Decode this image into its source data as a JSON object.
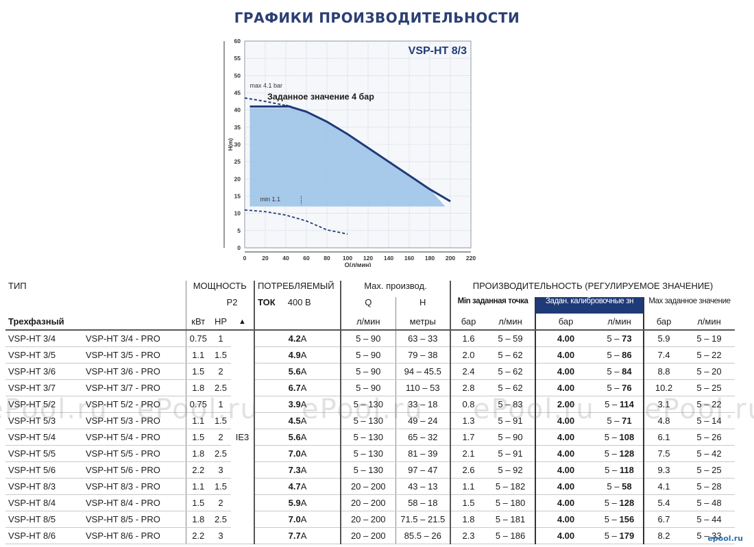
{
  "page": {
    "heading": "ГРАФИКИ ПРОИЗВОДИТЕЛЬНОСТИ"
  },
  "chart_data": {
    "type": "area",
    "title": "VSP-HT 8/3",
    "xlabel": "Q(л/мин)",
    "ylabel": "H(m)",
    "xlim": [
      0,
      220
    ],
    "ylim": [
      0,
      60
    ],
    "x_ticks": [
      0,
      20,
      40,
      60,
      80,
      100,
      120,
      140,
      160,
      180,
      200,
      220
    ],
    "y_ticks": [
      0,
      5,
      10,
      15,
      20,
      25,
      30,
      35,
      40,
      45,
      50,
      55,
      60
    ],
    "grid": true,
    "annotations": {
      "max_label": "max 4.1 bar",
      "setpoint_label": "Заданное значение 4 бар",
      "min_label": "min 1.1"
    },
    "max_curve": {
      "x": [
        0,
        20,
        40,
        60,
        80,
        100,
        120,
        140,
        160,
        180,
        200
      ],
      "y": [
        43.5,
        42.5,
        41.3,
        39.5,
        36.6,
        33.0,
        29.0,
        25.0,
        21.0,
        17.0,
        13.5
      ]
    },
    "setpoint_line": {
      "x": [
        5,
        45
      ],
      "y": [
        41,
        41
      ]
    },
    "min_curve": {
      "x": [
        0,
        20,
        40,
        60,
        80,
        100
      ],
      "y": [
        11,
        10.5,
        9.5,
        7.8,
        5.2,
        4.0
      ]
    },
    "operating_area": {
      "x": [
        5,
        45,
        60,
        80,
        100,
        120,
        140,
        160,
        180,
        195,
        5
      ],
      "y": [
        40.5,
        40.5,
        39.5,
        36.6,
        33.0,
        29.0,
        25.0,
        21.0,
        17.0,
        12.0,
        12.0
      ]
    },
    "colors": {
      "curve": "#1f3a78",
      "area": "#9ec3e8",
      "grid": "#b9c1cc"
    }
  },
  "table": {
    "h1": {
      "type": "ТИП",
      "power": "МОЩНОСТЬ",
      "consumption": "ПОТРЕБЛЯЕМЫЙ",
      "max_perf": "Max. производ.",
      "perf_regulated": "ПРОИЗВОДИТЕЛЬНОСТЬ (РЕГУЛИРУЕМОЕ ЗНАЧЕНИЕ)"
    },
    "h2": {
      "p2": "P2",
      "current": "ТОК",
      "voltage": "400 В",
      "q": "Q",
      "h": "H",
      "min_setpoint": "Min заданная точка",
      "calibrated": "Задан. калибровочные зн",
      "max_setpoint": "Max заданное значение"
    },
    "h3": {
      "phase": "Трехфазный",
      "kw": "кВт",
      "hp": "HP",
      "arrow": "▲",
      "lpm": "л/мин",
      "meters": "метры",
      "bar": "бар"
    },
    "efficiency_class": "IE3",
    "current_unit": "A",
    "rows": [
      {
        "model": "VSP-HT 3/4",
        "pro": "VSP-HT 3/4 - PRO",
        "kw": "0.75",
        "hp": "1",
        "amp": "4.2",
        "q": "5 – 90",
        "h": "63 – 33",
        "min_bar": "1.6",
        "min_lpm": "5 – 59",
        "cal_bar": "4.00",
        "cal_lpm_a": "5 – ",
        "cal_lpm_b": "73",
        "max_bar": "5.9",
        "max_lpm": "5 – 19"
      },
      {
        "model": "VSP-HT 3/5",
        "pro": "VSP-HT 3/5 - PRO",
        "kw": "1.1",
        "hp": "1.5",
        "amp": "4.9",
        "q": "5 – 90",
        "h": "79 – 38",
        "min_bar": "2.0",
        "min_lpm": "5 – 62",
        "cal_bar": "4.00",
        "cal_lpm_a": "5 – ",
        "cal_lpm_b": "86",
        "max_bar": "7.4",
        "max_lpm": "5 – 22"
      },
      {
        "model": "VSP-HT 3/6",
        "pro": "VSP-HT 3/6 - PRO",
        "kw": "1.5",
        "hp": "2",
        "amp": "5.6",
        "q": "5 – 90",
        "h": "94 – 45.5",
        "min_bar": "2.4",
        "min_lpm": "5 – 62",
        "cal_bar": "4.00",
        "cal_lpm_a": "5 – ",
        "cal_lpm_b": "84",
        "max_bar": "8.8",
        "max_lpm": "5 – 20"
      },
      {
        "model": "VSP-HT 3/7",
        "pro": "VSP-HT 3/7 - PRO",
        "kw": "1.8",
        "hp": "2.5",
        "amp": "6.7",
        "q": "5 – 90",
        "h": "110 – 53",
        "min_bar": "2.8",
        "min_lpm": "5 – 62",
        "cal_bar": "4.00",
        "cal_lpm_a": "5 – ",
        "cal_lpm_b": "76",
        "max_bar": "10.2",
        "max_lpm": "5 – 25"
      },
      {
        "model": "VSP-HT 5/2",
        "pro": "VSP-HT 5/2 - PRO",
        "kw": "0.75",
        "hp": "1",
        "amp": "3.9",
        "q": "5 – 130",
        "h": "33 – 18",
        "min_bar": "0.8",
        "min_lpm": "5 – 83",
        "cal_bar": "2.00",
        "cal_lpm_a": "5 – ",
        "cal_lpm_b": "114",
        "max_bar": "3.1",
        "max_lpm": "5 – 22"
      },
      {
        "model": "VSP-HT 5/3",
        "pro": "VSP-HT 5/3 - PRO",
        "kw": "1.1",
        "hp": "1.5",
        "amp": "4.5",
        "q": "5 – 130",
        "h": "49 – 24",
        "min_bar": "1.3",
        "min_lpm": "5 – 91",
        "cal_bar": "4.00",
        "cal_lpm_a": "5 – ",
        "cal_lpm_b": "71",
        "max_bar": "4.8",
        "max_lpm": "5 – 14"
      },
      {
        "model": "VSP-HT 5/4",
        "pro": "VSP-HT 5/4 - PRO",
        "kw": "1.5",
        "hp": "2",
        "amp": "5.6",
        "q": "5 – 130",
        "h": "65 – 32",
        "min_bar": "1.7",
        "min_lpm": "5 – 90",
        "cal_bar": "4.00",
        "cal_lpm_a": "5 – ",
        "cal_lpm_b": "108",
        "max_bar": "6.1",
        "max_lpm": "5 – 26"
      },
      {
        "model": "VSP-HT 5/5",
        "pro": "VSP-HT 5/5 - PRO",
        "kw": "1.8",
        "hp": "2.5",
        "amp": "7.0",
        "q": "5 – 130",
        "h": "81 – 39",
        "min_bar": "2.1",
        "min_lpm": "5 – 91",
        "cal_bar": "4.00",
        "cal_lpm_a": "5 – ",
        "cal_lpm_b": "128",
        "max_bar": "7.5",
        "max_lpm": "5 – 42"
      },
      {
        "model": "VSP-HT 5/6",
        "pro": "VSP-HT 5/6 - PRO",
        "kw": "2.2",
        "hp": "3",
        "amp": "7.3",
        "q": "5 – 130",
        "h": "97 – 47",
        "min_bar": "2.6",
        "min_lpm": "5 – 92",
        "cal_bar": "4.00",
        "cal_lpm_a": "5 – ",
        "cal_lpm_b": "118",
        "max_bar": "9.3",
        "max_lpm": "5 – 25"
      },
      {
        "model": "VSP-HT 8/3",
        "pro": "VSP-HT 8/3 - PRO",
        "kw": "1.1",
        "hp": "1.5",
        "amp": "4.7",
        "q": "20 – 200",
        "h": "43 – 13",
        "min_bar": "1.1",
        "min_lpm": "5 – 182",
        "cal_bar": "4.00",
        "cal_lpm_a": "5 – ",
        "cal_lpm_b": "58",
        "max_bar": "4.1",
        "max_lpm": "5 – 28"
      },
      {
        "model": "VSP-HT 8/4",
        "pro": "VSP-HT 8/4 - PRO",
        "kw": "1.5",
        "hp": "2",
        "amp": "5.9",
        "q": "20 – 200",
        "h": "58 – 18",
        "min_bar": "1.5",
        "min_lpm": "5 – 180",
        "cal_bar": "4.00",
        "cal_lpm_a": "5 – ",
        "cal_lpm_b": "128",
        "max_bar": "5.4",
        "max_lpm": "5 – 48"
      },
      {
        "model": "VSP-HT 8/5",
        "pro": "VSP-HT 8/5 - PRO",
        "kw": "1.8",
        "hp": "2.5",
        "amp": "7.0",
        "q": "20 – 200",
        "h": "71.5 – 21.5",
        "min_bar": "1.8",
        "min_lpm": "5 – 181",
        "cal_bar": "4.00",
        "cal_lpm_a": "5 – ",
        "cal_lpm_b": "156",
        "max_bar": "6.7",
        "max_lpm": "5 – 44"
      },
      {
        "model": "VSP-HT 8/6",
        "pro": "VSP-HT 8/6 - PRO",
        "kw": "2.2",
        "hp": "3",
        "amp": "7.7",
        "q": "20 – 200",
        "h": "85.5 – 26",
        "min_bar": "2.3",
        "min_lpm": "5 – 186",
        "cal_bar": "4.00",
        "cal_lpm_a": "5 – ",
        "cal_lpm_b": "179",
        "max_bar": "8.2",
        "max_lpm": "5 – 33"
      }
    ]
  },
  "watermarks": [
    "ePool.ru",
    "ePool.ru",
    "ePool.ru",
    "ePool.ru",
    "ePool.ru"
  ],
  "corner_logo": "epool.ru"
}
